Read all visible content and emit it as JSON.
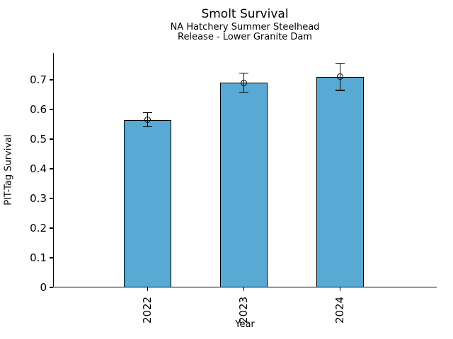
{
  "header": {
    "title": "Smolt Survival",
    "subtitle_line1": "NA Hatchery Summer Steelhead",
    "subtitle_line2": "Release - Lower Granite Dam"
  },
  "chart_data": {
    "type": "bar",
    "title": "Smolt Survival",
    "subtitle": [
      "NA Hatchery Summer Steelhead",
      "Release - Lower Granite Dam"
    ],
    "categories": [
      "2022",
      "2023",
      "2024"
    ],
    "values": [
      0.565,
      0.69,
      0.71
    ],
    "error_bars": [
      0.024,
      0.032,
      0.046
    ],
    "marker": "open-circle",
    "xlabel": "Year",
    "ylabel": "PIT-Tag Survival",
    "ylim": [
      0,
      0.79
    ],
    "yticks": [
      0,
      0.1,
      0.2,
      0.3,
      0.4,
      0.5,
      0.6,
      0.7
    ],
    "ytick_labels": [
      "0",
      "0.1",
      "0.2",
      "0.3",
      "0.4",
      "0.5",
      "0.6",
      "0.7"
    ],
    "grid": false,
    "legend": "none",
    "bar_color": "#58aad4",
    "bar_edge_color": "#000000",
    "bar_centers_frac": [
      0.246,
      0.497,
      0.748
    ],
    "bar_width_frac": 0.124
  }
}
